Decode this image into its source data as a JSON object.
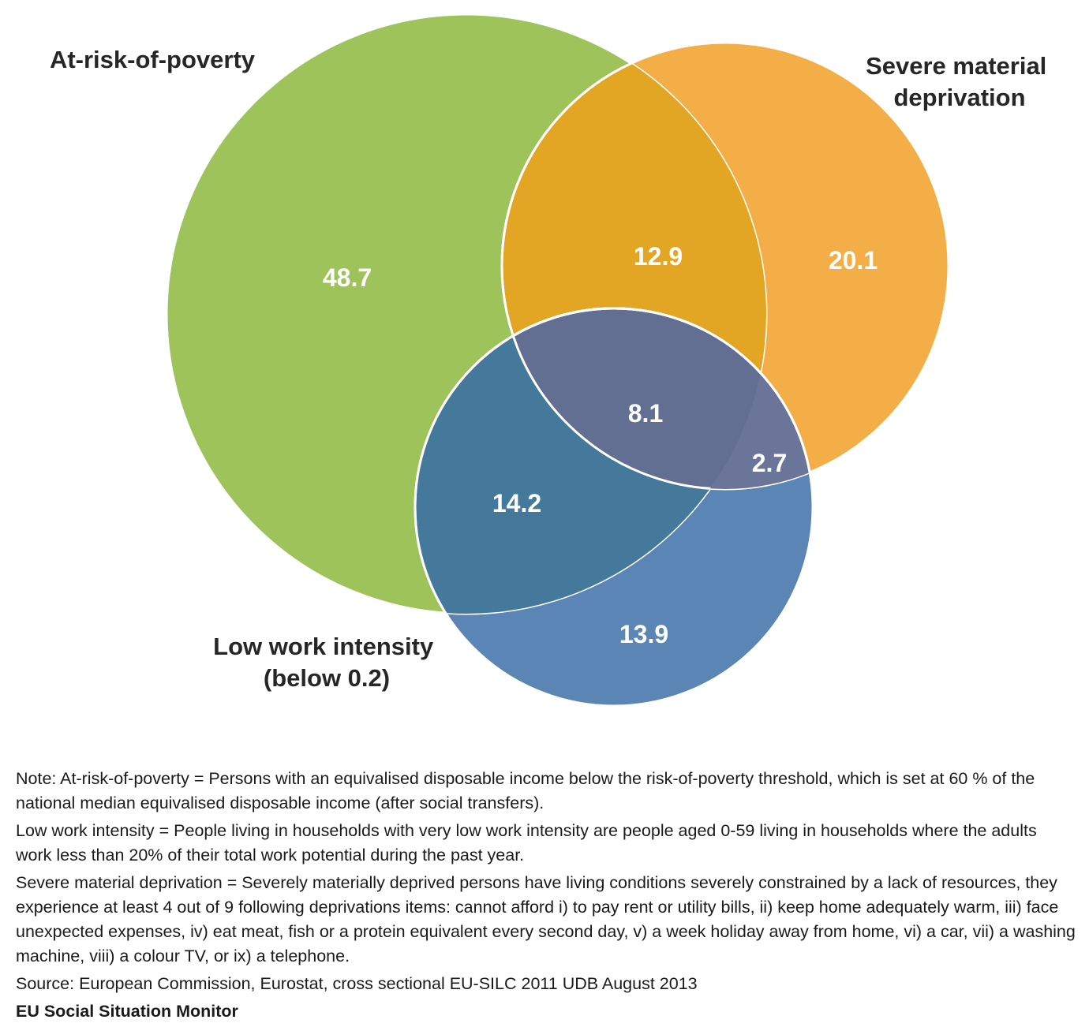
{
  "sets": {
    "poverty": {
      "label_lines": [
        "At-risk-of-poverty"
      ],
      "color": "#9fc35b"
    },
    "deprivation": {
      "label_lines": [
        "Severe material",
        "deprivation"
      ],
      "color": "#f4ae48"
    },
    "work": {
      "label_lines": [
        "Low work intensity",
        "(below 0.2)"
      ],
      "color": "#5b85b4"
    }
  },
  "regions": {
    "poverty_only": "48.7",
    "poverty_deprivation": "12.9",
    "deprivation_only": "20.1",
    "all_three": "8.1",
    "deprivation_work": "2.7",
    "poverty_work": "14.2",
    "work_only": "13.9"
  },
  "region_colors": {
    "poverty_deprivation": "#e3a624",
    "poverty_work": "#44799b",
    "deprivation_work": "#6a7599",
    "all_three": "#626e92",
    "outline": "#ffffff"
  },
  "notes": {
    "note1": "Note: At-risk-of-poverty = Persons with an equivalised disposable income below the risk-of-poverty threshold, which is set at 60 % of the national median equivalised disposable income (after social transfers).",
    "note2": "Low work intensity = People living in households with very low work intensity are people aged 0-59 living in households where the adults work less than 20% of their total work potential during the past year.",
    "note3": "Severe material deprivation = Severely materially deprived persons have living conditions severely constrained by a lack of resources, they experience at least 4 out of 9 following deprivations items: cannot afford i) to pay rent or utility bills, ii) keep home adequately warm, iii) face unexpected expenses, iv) eat meat, fish or a protein equivalent every second day, v) a week holiday away from home, vi) a car, vii) a washing machine, viii) a colour TV, or ix) a telephone.",
    "source": "Source: European Commission, Eurostat, cross sectional EU-SILC 2011 UDB August 2013",
    "monitor": "EU Social Situation Monitor"
  }
}
